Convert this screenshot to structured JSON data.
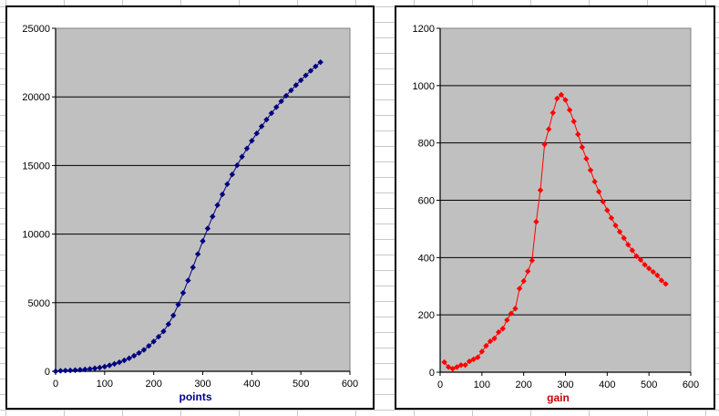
{
  "chart_data": [
    {
      "type": "line",
      "title": "",
      "xlabel": "points",
      "ylabel": "",
      "xlim": [
        0,
        600
      ],
      "ylim": [
        0,
        25000
      ],
      "x_ticks": [
        0,
        100,
        200,
        300,
        400,
        500,
        600
      ],
      "y_ticks": [
        0,
        5000,
        10000,
        15000,
        20000,
        25000
      ],
      "grid": "horizontal major gridlines",
      "legend": "none",
      "marker": "diamond",
      "color": "#000080",
      "xlabel_color": "#000099",
      "plot_background": "#c0c0c0",
      "series": [
        {
          "name": "points",
          "x": [
            0,
            10,
            20,
            30,
            40,
            50,
            60,
            70,
            80,
            90,
            100,
            110,
            120,
            130,
            140,
            150,
            160,
            170,
            180,
            190,
            200,
            210,
            220,
            230,
            240,
            250,
            260,
            270,
            280,
            290,
            300,
            310,
            320,
            330,
            340,
            350,
            360,
            370,
            380,
            390,
            400,
            410,
            420,
            430,
            440,
            450,
            460,
            470,
            480,
            490,
            500,
            510,
            520,
            530,
            540
          ],
          "values": [
            0,
            35,
            53,
            65,
            83,
            108,
            133,
            171,
            216,
            268,
            340,
            432,
            540,
            658,
            798,
            950,
            1132,
            1337,
            1559,
            1851,
            2169,
            2521,
            2911,
            3436,
            4071,
            4866,
            5714,
            6619,
            7574,
            8542,
            9492,
            10407,
            11282,
            12112,
            12897,
            13642,
            14347,
            15012,
            15642,
            16237,
            16802,
            17340,
            17852,
            18342,
            18810,
            19255,
            19680,
            20085,
            20477,
            20852,
            21214,
            21564,
            21902,
            22222,
            22530
          ]
        }
      ]
    },
    {
      "type": "line",
      "title": "",
      "xlabel": "gain",
      "ylabel": "",
      "xlim": [
        0,
        600
      ],
      "ylim": [
        0,
        1200
      ],
      "x_ticks": [
        0,
        100,
        200,
        300,
        400,
        500,
        600
      ],
      "y_ticks": [
        0,
        200,
        400,
        600,
        800,
        1000,
        1200
      ],
      "grid": "horizontal major gridlines",
      "legend": "none",
      "marker": "diamond",
      "color": "#ff0000",
      "xlabel_color": "#cc0000",
      "plot_background": "#c0c0c0",
      "series": [
        {
          "name": "gain",
          "x": [
            10,
            20,
            30,
            40,
            50,
            60,
            70,
            80,
            90,
            100,
            110,
            120,
            130,
            140,
            150,
            160,
            170,
            180,
            190,
            200,
            210,
            220,
            230,
            240,
            250,
            260,
            270,
            280,
            290,
            300,
            310,
            320,
            330,
            340,
            350,
            360,
            370,
            380,
            390,
            400,
            410,
            420,
            430,
            440,
            450,
            460,
            470,
            480,
            490,
            500,
            510,
            520,
            530,
            540
          ],
          "values": [
            35,
            18,
            12,
            18,
            25,
            25,
            38,
            45,
            52,
            72,
            92,
            108,
            118,
            140,
            152,
            182,
            205,
            222,
            292,
            318,
            352,
            390,
            525,
            635,
            795,
            848,
            905,
            955,
            968,
            950,
            915,
            875,
            830,
            785,
            745,
            705,
            665,
            630,
            595,
            565,
            538,
            512,
            490,
            468,
            445,
            425,
            405,
            392,
            375,
            362,
            350,
            338,
            320,
            308
          ]
        }
      ]
    }
  ]
}
